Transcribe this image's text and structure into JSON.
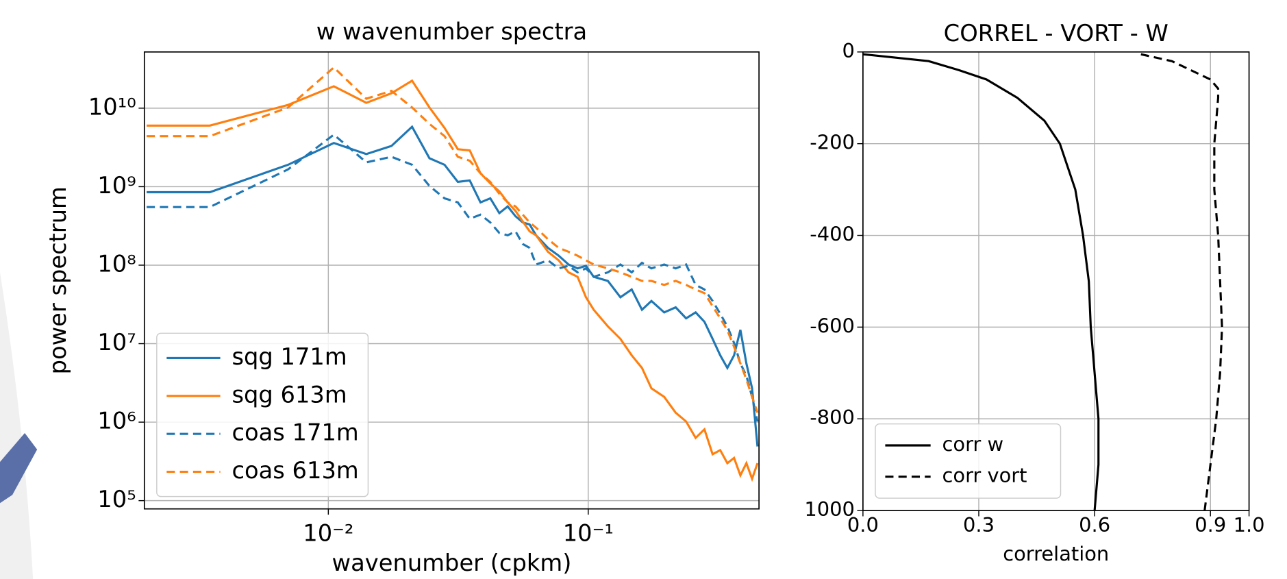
{
  "chart_data": [
    {
      "type": "line",
      "title": "w wavenumber spectra",
      "xlabel": "wavenumber (cpkm)",
      "ylabel": "power spectrum",
      "log_x": true,
      "log_y": true,
      "grid": true,
      "legend": "lower left",
      "xlim": [
        0.00196,
        0.454
      ],
      "ylim": [
        78500,
        52000000000
      ],
      "xticks": [
        {
          "value": 0.01,
          "label": "10⁻²"
        },
        {
          "value": 0.1,
          "label": "10⁻¹"
        }
      ],
      "yticks": [
        {
          "value": 100000,
          "label": "10⁵"
        },
        {
          "value": 1000000,
          "label": "10⁶"
        },
        {
          "value": 10000000,
          "label": "10⁷"
        },
        {
          "value": 100000000,
          "label": "10⁸"
        },
        {
          "value": 1000000000,
          "label": "10⁹"
        },
        {
          "value": 10000000000,
          "label": "10¹⁰"
        }
      ],
      "x": [
        0.002,
        0.0035,
        0.007,
        0.0105,
        0.014,
        0.0175,
        0.021,
        0.0245,
        0.028,
        0.0315,
        0.035,
        0.0385,
        0.042,
        0.0455,
        0.049,
        0.0525,
        0.056,
        0.0595,
        0.063,
        0.07,
        0.077,
        0.084,
        0.091,
        0.098,
        0.105,
        0.119,
        0.133,
        0.147,
        0.161,
        0.175,
        0.196,
        0.217,
        0.238,
        0.259,
        0.28,
        0.301,
        0.322,
        0.343,
        0.364,
        0.385,
        0.406,
        0.427,
        0.448
      ],
      "series": [
        {
          "name": "sqg 171m",
          "color": "#1f77b4",
          "linestyle": "solid",
          "values": [
            850000000.0,
            850000000.0,
            1900000000.0,
            3600000000.0,
            2600000000.0,
            3300000000.0,
            5800000000.0,
            2300000000.0,
            1900000000.0,
            1150000000.0,
            1200000000.0,
            630000000.0,
            710000000.0,
            460000000.0,
            560000000.0,
            420000000.0,
            350000000.0,
            330000000.0,
            240000000.0,
            166000000.0,
            132000000.0,
            102000000.0,
            91000000.0,
            98000000.0,
            71000000.0,
            63000000.0,
            39000000.0,
            49000000.0,
            27000000.0,
            35000000.0,
            25000000.0,
            29000000.0,
            21000000.0,
            25000000.0,
            19000000.0,
            11500000.0,
            7100000.0,
            4900000.0,
            7100000.0,
            15000000.0,
            5600000.0,
            2700000.0,
            490000.0
          ]
        },
        {
          "name": "sqg 613m",
          "color": "#ff7f0e",
          "linestyle": "solid",
          "values": [
            6000000000.0,
            6000000000.0,
            11000000000.0,
            19000000000.0,
            11700000000.0,
            15500000000.0,
            22400000000.0,
            10200000000.0,
            5600000000.0,
            3000000000.0,
            2900000000.0,
            1480000000.0,
            1100000000.0,
            870000000.0,
            630000000.0,
            490000000.0,
            360000000.0,
            270000000.0,
            240000000.0,
            148000000.0,
            115000000.0,
            81000000.0,
            71000000.0,
            39000000.0,
            27000000.0,
            16600000.0,
            11500000.0,
            7100000.0,
            4900000.0,
            2700000.0,
            2100000.0,
            1320000.0,
            1020000.0,
            630000.0,
            810000.0,
            390000.0,
            440000.0,
            300000.0,
            350000.0,
            210000.0,
            300000.0,
            190000.0,
            300000.0
          ]
        },
        {
          "name": "coas 171m",
          "color": "#1f77b4",
          "linestyle": "dashed",
          "values": [
            550000000.0,
            550000000.0,
            1660000000.0,
            4600000000.0,
            2040000000.0,
            2400000000.0,
            1900000000.0,
            1020000000.0,
            710000000.0,
            630000000.0,
            390000000.0,
            440000000.0,
            350000000.0,
            257000000.0,
            240000000.0,
            270000000.0,
            186000000.0,
            166000000.0,
            102000000.0,
            115000000.0,
            91000000.0,
            98000000.0,
            81000000.0,
            91000000.0,
            71000000.0,
            81000000.0,
            102000000.0,
            81000000.0,
            107000000.0,
            91000000.0,
            102000000.0,
            91000000.0,
            102000000.0,
            56000000.0,
            49000000.0,
            35000000.0,
            24000000.0,
            16600000.0,
            10200000.0,
            5600000.0,
            3900000.0,
            2100000.0,
            1020000.0
          ]
        },
        {
          "name": "coas 613m",
          "color": "#ff7f0e",
          "linestyle": "dashed",
          "values": [
            4400000000.0,
            4400000000.0,
            10200000000.0,
            33000000000.0,
            13200000000.0,
            16600000000.0,
            10200000000.0,
            6300000000.0,
            4400000000.0,
            2400000000.0,
            2140000000.0,
            1480000000.0,
            1150000000.0,
            810000000.0,
            630000000.0,
            560000000.0,
            440000000.0,
            350000000.0,
            300000000.0,
            214000000.0,
            166000000.0,
            148000000.0,
            132000000.0,
            115000000.0,
            102000000.0,
            91000000.0,
            81000000.0,
            71000000.0,
            63000000.0,
            63000000.0,
            56000000.0,
            63000000.0,
            56000000.0,
            49000000.0,
            44000000.0,
            30000000.0,
            21000000.0,
            14800000.0,
            9100000.0,
            5600000.0,
            3500000.0,
            2100000.0,
            1320000.0
          ]
        }
      ]
    },
    {
      "type": "line",
      "title": "CORREL - VORT - W",
      "xlabel": "correlation",
      "grid": true,
      "legend": "lower left",
      "xlim": [
        0,
        1
      ],
      "ylim": [
        -1000,
        0
      ],
      "xticks": [
        {
          "value": 0,
          "label": "0.0"
        },
        {
          "value": 0.3,
          "label": "0.3"
        },
        {
          "value": 0.6,
          "label": "0.6"
        },
        {
          "value": 0.9,
          "label": "0.9"
        },
        {
          "value": 1,
          "label": "1.0"
        }
      ],
      "yticks": [
        0,
        -200,
        -400,
        -600,
        -800,
        {
          "value": -1000,
          "label": "1000"
        }
      ],
      "y": [
        -5,
        -20,
        -40,
        -60,
        -80,
        -100,
        -150,
        -200,
        -250,
        -300,
        -400,
        -500,
        -600,
        -700,
        -800,
        -900,
        -1000
      ],
      "series": [
        {
          "name": "corr w",
          "color": "#000000",
          "linestyle": "solid",
          "values": [
            0.0,
            0.17,
            0.25,
            0.32,
            0.36,
            0.4,
            0.47,
            0.51,
            0.53,
            0.55,
            0.57,
            0.585,
            0.59,
            0.6,
            0.61,
            0.61,
            0.6
          ]
        },
        {
          "name": "corr vort",
          "color": "#000000",
          "linestyle": "dashed",
          "values": [
            0.72,
            0.8,
            0.85,
            0.9,
            0.92,
            0.92,
            0.915,
            0.91,
            0.91,
            0.91,
            0.92,
            0.925,
            0.93,
            0.925,
            0.915,
            0.9,
            0.885
          ]
        }
      ]
    }
  ]
}
